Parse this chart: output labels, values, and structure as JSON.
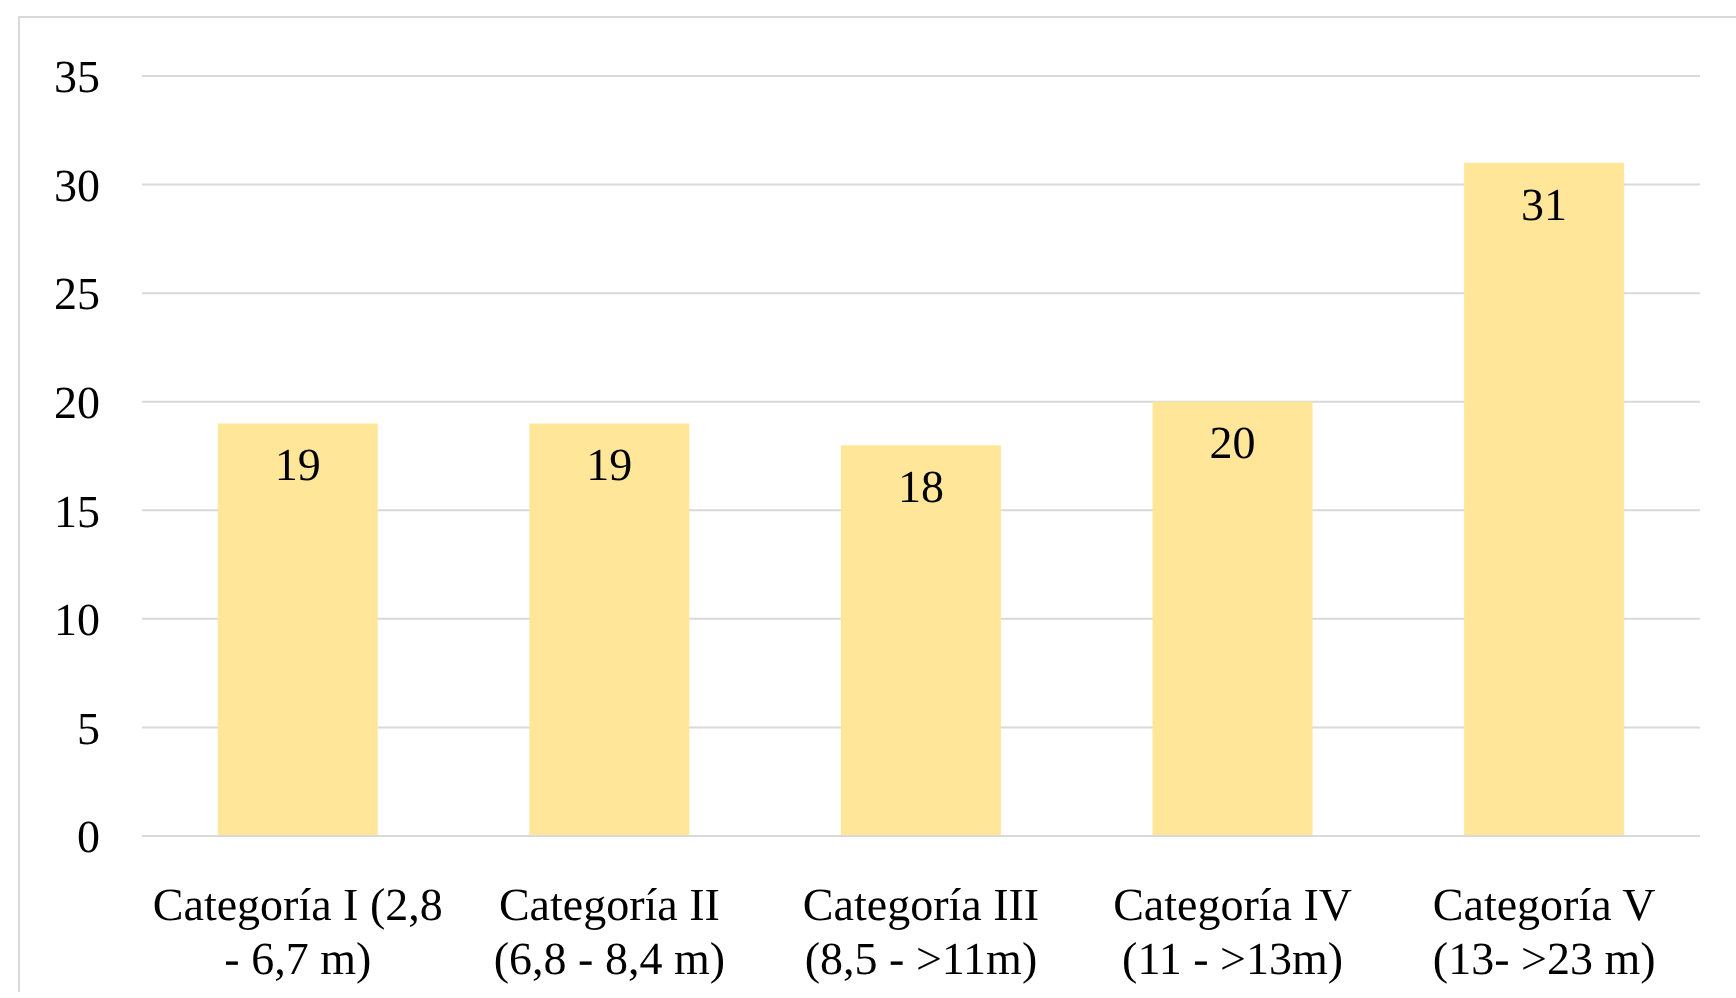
{
  "chart_data": {
    "type": "bar",
    "categories": [
      "Categoría I (2,8 - 6,7 m)",
      "Categoría II (6,8 - 8,4 m)",
      "Categoría III (8,5 - >11m)",
      "Categoría IV (11 - >13m)",
      "Categoría V (13- >23 m)"
    ],
    "values": [
      19,
      19,
      18,
      20,
      31
    ],
    "color": "#ffe699",
    "ylim": [
      0,
      35
    ],
    "yticks": [
      0,
      5,
      10,
      15,
      20,
      25,
      30,
      35
    ],
    "grid": "y",
    "data_labels": true
  }
}
